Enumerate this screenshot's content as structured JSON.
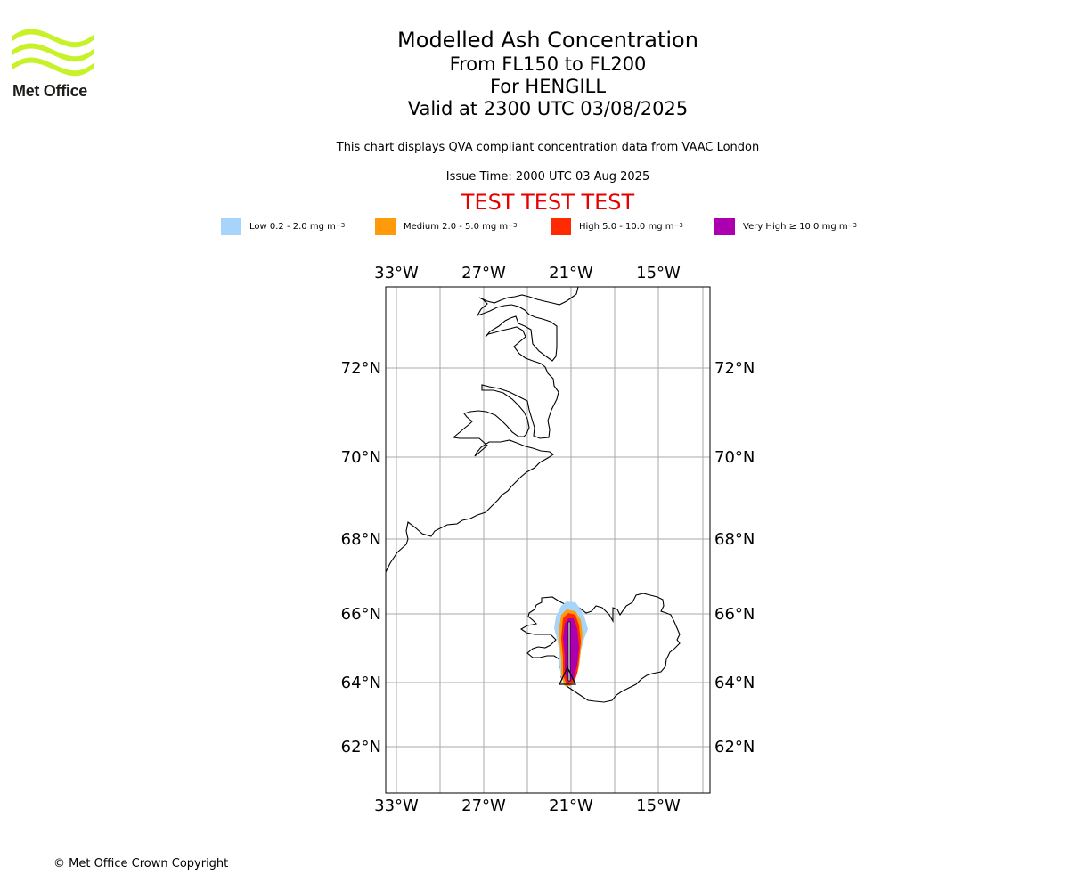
{
  "logo": {
    "text": "Met Office",
    "wave_color": "#c8f228",
    "text_color": "#1d1d1b"
  },
  "header": {
    "title": "Modelled Ash Concentration",
    "levels": "From FL150 to FL200",
    "volcano": "For HENGILL",
    "valid": "Valid at 2300 UTC 03/08/2025",
    "subtitle": "This chart displays QVA compliant concentration data from VAAC London",
    "issue_time": "Issue Time: 2000 UTC 03 Aug 2025",
    "test_banner": "TEST TEST TEST",
    "test_color": "#e60000"
  },
  "legend": [
    {
      "label": "Low 0.2 - 2.0 mg m",
      "sup": "−3",
      "color": "#a6d4fa"
    },
    {
      "label": "Medium 2.0 - 5.0 mg m",
      "sup": "−3",
      "color": "#ff9a0a"
    },
    {
      "label": "High 5.0 - 10.0 mg m",
      "sup": "−3",
      "color": "#ff2a00"
    },
    {
      "label": "Very High  ≥  10.0 mg m",
      "sup": "−3",
      "color": "#ac00b0"
    }
  ],
  "map": {
    "lon_labels": [
      "33°W",
      "27°W",
      "21°W",
      "15°W"
    ],
    "lat_labels": [
      "72°N",
      "70°N",
      "68°N",
      "66°N",
      "64°N",
      "62°N"
    ],
    "gridline_color": "#aaaaaa",
    "coast_color": "#000000"
  },
  "footer": {
    "copyright": "© Met Office Crown Copyright"
  }
}
